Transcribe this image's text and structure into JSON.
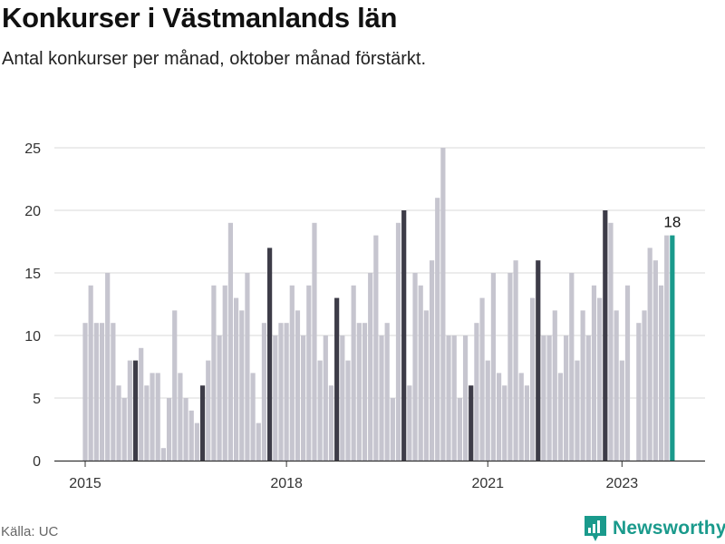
{
  "title": "Konkurser i Västmanlands län",
  "subtitle": "Antal konkurser per månad, oktober månad förstärkt.",
  "source": "Källa: UC",
  "brand": {
    "name": "Newsworthy",
    "icon": "newsworthy-logo-icon",
    "color": "#1a9a8c"
  },
  "colors": {
    "normal": "#c6c5cf",
    "highlight": "#3d3c48",
    "latest": "#1a9a8c",
    "grid": "#d9d9d9",
    "axis": "#333333"
  },
  "chart_data": {
    "type": "bar",
    "title": "Konkurser i Västmanlands län",
    "subtitle": "Antal konkurser per månad, oktober månad förstärkt.",
    "xlabel": "",
    "ylabel": "",
    "ylim": [
      0,
      25
    ],
    "yticks": [
      0,
      5,
      10,
      15,
      20,
      25
    ],
    "grid": true,
    "legend": "none",
    "x_tick_labels": [
      {
        "label": "2015",
        "date": "2015-01"
      },
      {
        "label": "2018",
        "date": "2018-01"
      },
      {
        "label": "2021",
        "date": "2021-01"
      },
      {
        "label": "2023",
        "date": "2023-01"
      }
    ],
    "categories": [
      "2015-01",
      "2015-02",
      "2015-03",
      "2015-04",
      "2015-05",
      "2015-06",
      "2015-07",
      "2015-08",
      "2015-09",
      "2015-10",
      "2015-11",
      "2015-12",
      "2016-01",
      "2016-02",
      "2016-03",
      "2016-04",
      "2016-05",
      "2016-06",
      "2016-07",
      "2016-08",
      "2016-09",
      "2016-10",
      "2016-11",
      "2016-12",
      "2017-01",
      "2017-02",
      "2017-03",
      "2017-04",
      "2017-05",
      "2017-06",
      "2017-07",
      "2017-08",
      "2017-09",
      "2017-10",
      "2017-11",
      "2017-12",
      "2018-01",
      "2018-02",
      "2018-03",
      "2018-04",
      "2018-05",
      "2018-06",
      "2018-07",
      "2018-08",
      "2018-09",
      "2018-10",
      "2018-11",
      "2018-12",
      "2019-01",
      "2019-02",
      "2019-03",
      "2019-04",
      "2019-05",
      "2019-06",
      "2019-07",
      "2019-08",
      "2019-09",
      "2019-10",
      "2019-11",
      "2019-12",
      "2020-01",
      "2020-02",
      "2020-03",
      "2020-04",
      "2020-05",
      "2020-06",
      "2020-07",
      "2020-08",
      "2020-09",
      "2020-10",
      "2020-11",
      "2020-12",
      "2021-01",
      "2021-02",
      "2021-03",
      "2021-04",
      "2021-05",
      "2021-06",
      "2021-07",
      "2021-08",
      "2021-09",
      "2021-10",
      "2021-11",
      "2021-12",
      "2022-01",
      "2022-02",
      "2022-03",
      "2022-04",
      "2022-05",
      "2022-06",
      "2022-07",
      "2022-08",
      "2022-09",
      "2022-10",
      "2022-11",
      "2022-12",
      "2023-01",
      "2023-02",
      "2023-03",
      "2023-04",
      "2023-05",
      "2023-06",
      "2023-07",
      "2023-08",
      "2023-09",
      "2023-10"
    ],
    "values": [
      11,
      14,
      11,
      11,
      15,
      11,
      6,
      5,
      8,
      8,
      9,
      6,
      7,
      7,
      1,
      5,
      12,
      7,
      5,
      4,
      3,
      6,
      8,
      14,
      10,
      14,
      19,
      13,
      12,
      15,
      7,
      3,
      11,
      17,
      10,
      11,
      11,
      14,
      12,
      10,
      14,
      19,
      8,
      10,
      6,
      13,
      10,
      8,
      14,
      11,
      11,
      15,
      18,
      10,
      11,
      5,
      19,
      20,
      6,
      15,
      14,
      12,
      16,
      21,
      25,
      10,
      10,
      5,
      10,
      6,
      11,
      13,
      8,
      15,
      7,
      6,
      15,
      16,
      7,
      6,
      13,
      16,
      10,
      10,
      12,
      7,
      10,
      15,
      8,
      12,
      10,
      14,
      13,
      20,
      19,
      12,
      8,
      14,
      0,
      11,
      12,
      17,
      16,
      14,
      18,
      18
    ],
    "highlight_month": "oktober",
    "annotations": [
      {
        "date": "2023-10",
        "label": "18"
      }
    ]
  }
}
